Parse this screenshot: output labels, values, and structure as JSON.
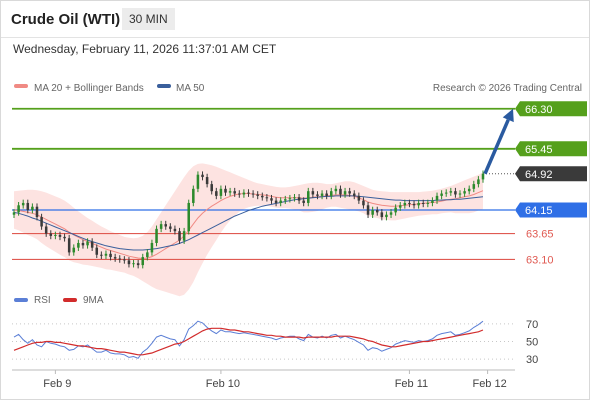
{
  "header": {
    "instrument": "Crude Oil (WTI)",
    "timeframe": "30 MIN",
    "datetime": "Wednesday, February 11, 2026 11:37:01 AM CET"
  },
  "legend": {
    "ma20": "MA 20 + Bollinger Bands",
    "ma50": "MA 50",
    "rsi": "RSI",
    "ma9": "9MA",
    "credit": "Research © 2026 Trading Central"
  },
  "colors": {
    "resistance": "#55a01c",
    "current": "#3a3a3a",
    "pivot": "#2f6fe6",
    "support": "#e05a52",
    "ma20": "#f08a84",
    "ma50": "#3a5f9c",
    "bands": "#fde3e1",
    "up": "#2c8a2c",
    "down": "#3a3a3a",
    "rsi": "#5b7fd6",
    "ma9": "#d22c2c"
  },
  "chart_data": [
    {
      "type": "candlestick",
      "name": "price",
      "ylim": [
        62.6,
        66.55
      ],
      "x_labels": [
        "Feb 9",
        "Feb 10",
        "Feb 11",
        "Feb 12"
      ],
      "x_label_index": [
        9,
        45,
        86,
        103
      ],
      "levels": [
        {
          "value": 66.3,
          "label": "66.30",
          "kind": "resistance"
        },
        {
          "value": 65.45,
          "label": "65.45",
          "kind": "resistance"
        },
        {
          "value": 64.92,
          "label": "64.92",
          "kind": "current"
        },
        {
          "value": 64.15,
          "label": "64.15",
          "kind": "pivot"
        },
        {
          "value": 63.65,
          "label": "63.65",
          "kind": "support"
        },
        {
          "value": 63.1,
          "label": "63.10",
          "kind": "support"
        }
      ],
      "forecast_arrow": {
        "from": 64.92,
        "to": 66.3
      },
      "closes": [
        64.1,
        64.25,
        64.3,
        64.15,
        64.22,
        64.0,
        63.8,
        63.65,
        63.6,
        63.62,
        63.58,
        63.55,
        63.25,
        63.35,
        63.45,
        63.4,
        63.48,
        63.35,
        63.2,
        63.18,
        63.22,
        63.15,
        63.12,
        63.1,
        63.08,
        63.0,
        63.02,
        62.98,
        63.15,
        63.25,
        63.45,
        63.75,
        63.85,
        63.8,
        63.75,
        63.7,
        63.5,
        63.7,
        64.3,
        64.6,
        64.9,
        64.85,
        64.7,
        64.55,
        64.45,
        64.6,
        64.52,
        64.55,
        64.5,
        64.48,
        64.52,
        64.5,
        64.48,
        64.45,
        64.42,
        64.4,
        64.35,
        64.3,
        64.35,
        64.38,
        64.4,
        64.42,
        64.35,
        64.3,
        64.55,
        64.48,
        64.45,
        64.5,
        64.45,
        64.55,
        64.6,
        64.48,
        64.55,
        64.5,
        64.45,
        64.35,
        64.25,
        64.05,
        64.15,
        64.1,
        64.0,
        64.05,
        64.1,
        64.2,
        64.25,
        64.3,
        64.28,
        64.25,
        64.3,
        64.28,
        64.3,
        64.35,
        64.45,
        64.5,
        64.52,
        64.55,
        64.48,
        64.5,
        64.55,
        64.6,
        64.7,
        64.8,
        64.92
      ],
      "ma20": [
        64.15,
        64.14,
        64.12,
        64.1,
        64.08,
        64.05,
        64.0,
        63.95,
        63.9,
        63.85,
        63.8,
        63.75,
        63.68,
        63.62,
        63.57,
        63.52,
        63.48,
        63.44,
        63.4,
        63.36,
        63.32,
        63.29,
        63.26,
        63.23,
        63.2,
        63.17,
        63.15,
        63.13,
        63.12,
        63.13,
        63.16,
        63.21,
        63.27,
        63.33,
        63.39,
        63.45,
        63.51,
        63.6,
        63.72,
        63.85,
        63.98,
        64.08,
        64.16,
        64.23,
        64.29,
        64.35,
        64.4,
        64.44,
        64.47,
        64.49,
        64.5,
        64.5,
        64.49,
        64.48,
        64.47,
        64.46,
        64.44,
        64.42,
        64.41,
        64.41,
        64.41,
        64.41,
        64.41,
        64.4,
        64.41,
        64.42,
        64.43,
        64.44,
        64.45,
        64.46,
        64.47,
        64.47,
        64.47,
        64.46,
        64.44,
        64.41,
        64.37,
        64.32,
        64.29,
        64.27,
        64.25,
        64.24,
        64.23,
        64.23,
        64.24,
        64.25,
        64.26,
        64.27,
        64.28,
        64.29,
        64.3,
        64.31,
        64.32,
        64.34,
        64.36,
        64.38,
        64.39,
        64.41,
        64.43,
        64.45,
        64.48,
        64.52,
        64.56
      ],
      "ma50": [
        64.1,
        64.08,
        64.05,
        64.02,
        63.98,
        63.95,
        63.91,
        63.87,
        63.83,
        63.79,
        63.75,
        63.71,
        63.67,
        63.63,
        63.59,
        63.55,
        63.51,
        63.48,
        63.45,
        63.42,
        63.39,
        63.37,
        63.35,
        63.33,
        63.32,
        63.31,
        63.3,
        63.3,
        63.3,
        63.31,
        63.32,
        63.33,
        63.35,
        63.37,
        63.39,
        63.41,
        63.44,
        63.48,
        63.52,
        63.57,
        63.62,
        63.67,
        63.72,
        63.77,
        63.82,
        63.87,
        63.92,
        63.97,
        64.02,
        64.06,
        64.1,
        64.14,
        64.17,
        64.2,
        64.23,
        64.25,
        64.27,
        64.29,
        64.31,
        64.33,
        64.35,
        64.37,
        64.38,
        64.39,
        64.4,
        64.41,
        64.42,
        64.43,
        64.44,
        64.44,
        64.45,
        64.45,
        64.45,
        64.45,
        64.45,
        64.44,
        64.43,
        64.42,
        64.41,
        64.4,
        64.39,
        64.38,
        64.37,
        64.36,
        64.36,
        64.35,
        64.35,
        64.35,
        64.35,
        64.35,
        64.35,
        64.35,
        64.36,
        64.36,
        64.37,
        64.37,
        64.38,
        64.38,
        64.39,
        64.4,
        64.41,
        64.42,
        64.43
      ],
      "bb_upper": [
        64.55,
        64.56,
        64.57,
        64.58,
        64.58,
        64.57,
        64.55,
        64.52,
        64.48,
        64.44,
        64.4,
        64.35,
        64.28,
        64.2,
        64.12,
        64.05,
        63.98,
        63.92,
        63.86,
        63.8,
        63.75,
        63.7,
        63.66,
        63.62,
        63.58,
        63.56,
        63.55,
        63.56,
        63.6,
        63.68,
        63.8,
        63.95,
        64.1,
        64.25,
        64.4,
        64.55,
        64.7,
        64.85,
        64.98,
        65.08,
        65.13,
        65.14,
        65.12,
        65.1,
        65.07,
        65.03,
        64.99,
        64.95,
        64.91,
        64.87,
        64.83,
        64.79,
        64.75,
        64.72,
        64.7,
        64.68,
        64.66,
        64.64,
        64.63,
        64.63,
        64.64,
        64.66,
        64.68,
        64.7,
        64.72,
        64.73,
        64.73,
        64.72,
        64.7,
        64.7,
        64.72,
        64.74,
        64.76,
        64.76,
        64.74,
        64.7,
        64.66,
        64.62,
        64.58,
        64.56,
        64.55,
        64.54,
        64.53,
        64.53,
        64.53,
        64.53,
        64.53,
        64.53,
        64.53,
        64.54,
        64.55,
        64.56,
        64.58,
        64.6,
        64.63,
        64.66,
        64.7,
        64.74,
        64.78,
        64.82,
        64.86,
        64.9,
        64.95
      ],
      "bb_lower": [
        63.75,
        63.72,
        63.67,
        63.62,
        63.58,
        63.53,
        63.45,
        63.38,
        63.32,
        63.26,
        63.2,
        63.15,
        63.08,
        63.04,
        63.02,
        62.99,
        62.98,
        62.96,
        62.94,
        62.92,
        62.89,
        62.88,
        62.86,
        62.84,
        62.82,
        62.78,
        62.75,
        62.7,
        62.64,
        62.58,
        62.52,
        62.47,
        62.44,
        62.41,
        62.38,
        62.35,
        62.32,
        62.35,
        62.46,
        62.62,
        62.83,
        63.02,
        63.2,
        63.36,
        63.51,
        63.67,
        63.81,
        63.93,
        64.03,
        64.11,
        64.17,
        64.21,
        64.23,
        64.24,
        64.24,
        64.24,
        64.22,
        64.2,
        64.19,
        64.19,
        64.18,
        64.16,
        64.14,
        64.1,
        64.1,
        64.11,
        64.13,
        64.16,
        64.2,
        64.22,
        64.22,
        64.2,
        64.18,
        64.16,
        64.14,
        64.12,
        64.08,
        64.02,
        64.0,
        63.98,
        63.95,
        63.94,
        63.93,
        63.93,
        63.95,
        63.97,
        63.99,
        64.01,
        64.03,
        64.04,
        64.05,
        64.06,
        64.06,
        64.08,
        64.09,
        64.1,
        64.08,
        64.08,
        64.08,
        64.08,
        64.1,
        64.14,
        64.17
      ]
    },
    {
      "type": "line",
      "name": "rsi",
      "ylim": [
        20,
        80
      ],
      "ticks": [
        70,
        50,
        30
      ],
      "rsi": [
        55,
        58,
        52,
        48,
        52,
        46,
        44,
        50,
        48,
        47,
        45,
        44,
        40,
        41,
        45,
        44,
        46,
        42,
        38,
        38,
        40,
        37,
        36,
        36,
        35,
        32,
        33,
        31,
        38,
        42,
        48,
        55,
        57,
        55,
        53,
        52,
        45,
        52,
        64,
        68,
        73,
        71,
        66,
        62,
        59,
        63,
        61,
        61,
        60,
        59,
        60,
        59,
        58,
        57,
        56,
        55,
        54,
        52,
        54,
        55,
        56,
        56,
        53,
        51,
        58,
        55,
        54,
        56,
        54,
        57,
        58,
        54,
        56,
        54,
        52,
        49,
        46,
        40,
        43,
        42,
        39,
        41,
        43,
        47,
        49,
        51,
        50,
        49,
        51,
        50,
        51,
        53,
        57,
        59,
        60,
        61,
        57,
        58,
        60,
        62,
        66,
        69,
        73
      ],
      "ma9": [
        40,
        42,
        44,
        46,
        48,
        49,
        49,
        50,
        50,
        49,
        49,
        48,
        47,
        46,
        45,
        45,
        44,
        43,
        42,
        42,
        41,
        40,
        39,
        38,
        38,
        37,
        36,
        35,
        35,
        36,
        37,
        39,
        41,
        43,
        45,
        47,
        48,
        50,
        53,
        56,
        59,
        62,
        64,
        65,
        65,
        65,
        64,
        63,
        63,
        62,
        61,
        61,
        60,
        59,
        58,
        57,
        57,
        56,
        56,
        55,
        55,
        55,
        55,
        54,
        55,
        55,
        55,
        55,
        55,
        55,
        56,
        56,
        56,
        56,
        55,
        54,
        53,
        51,
        50,
        48,
        46,
        45,
        44,
        44,
        45,
        46,
        47,
        48,
        49,
        50,
        50,
        51,
        52,
        53,
        54,
        55,
        56,
        57,
        58,
        59,
        60,
        61,
        63
      ]
    }
  ]
}
